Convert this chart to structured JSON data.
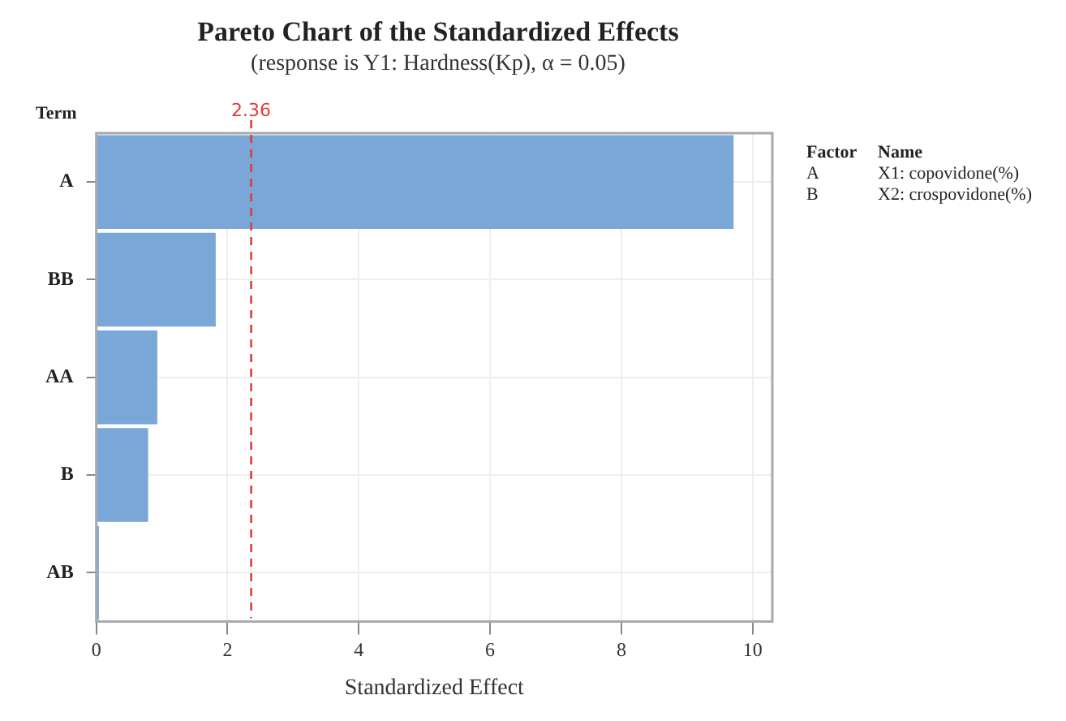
{
  "chart_data": {
    "type": "bar",
    "orientation": "horizontal",
    "title": "Pareto Chart of the Standardized Effects",
    "subtitle": "(response is Y1: Hardness(Kp), α = 0.05)",
    "xlabel": "Standardized Effect",
    "ylabel": "Term",
    "categories": [
      "A",
      "BB",
      "AA",
      "B",
      "AB"
    ],
    "values": [
      9.71,
      1.82,
      0.93,
      0.79,
      0.04
    ],
    "color": "#7aa6d8",
    "xlim": [
      0,
      10.3
    ],
    "xticks": [
      0,
      2,
      4,
      6,
      8,
      10
    ],
    "grid": true,
    "ref_lines": [
      {
        "axis": "x",
        "value": 2.36,
        "label": "2.36",
        "color": "#e03c3c",
        "line_style": "dashed"
      }
    ],
    "annotations": [
      "Factor",
      "Name",
      "A",
      "X1: copovidone(%)",
      "B",
      "X2: crospovidone(%)"
    ]
  }
}
